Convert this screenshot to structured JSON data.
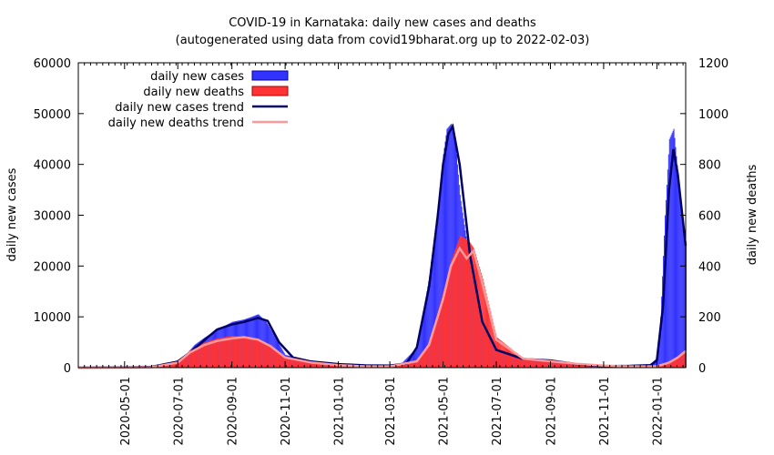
{
  "chart_data": {
    "type": "bar",
    "title": "COVID-19 in Karnataka: daily new cases and deaths",
    "subtitle": "(autogenerated using data from covid19bharat.org up to 2022-02-03)",
    "ylabel": "daily new cases",
    "y2label": "daily new deaths",
    "ylim": [
      0,
      60000
    ],
    "y2lim": [
      0,
      1200
    ],
    "yticks": [
      "0",
      "10000",
      "20000",
      "30000",
      "40000",
      "50000",
      "60000"
    ],
    "y2ticks": [
      "0",
      "200",
      "400",
      "600",
      "800",
      "1000",
      "1200"
    ],
    "xlim": [
      "2020-03-09",
      "2022-02-03"
    ],
    "xticks": [
      "2020-05-01",
      "2020-07-01",
      "2020-09-01",
      "2020-11-01",
      "2021-01-01",
      "2021-03-01",
      "2021-05-01",
      "2021-07-01",
      "2021-09-01",
      "2021-11-01",
      "2022-01-01"
    ],
    "grid": false,
    "legend_position": "top-left",
    "colors": {
      "cases": "#3333ff",
      "deaths": "#ff3333",
      "cases_trend": "#000066",
      "deaths_trend": "#ff9999"
    },
    "series": [
      {
        "name": "daily new cases",
        "axis": "left",
        "style": "bars",
        "x": [
          "2020-03-09",
          "2020-04-01",
          "2020-05-01",
          "2020-06-01",
          "2020-06-15",
          "2020-07-01",
          "2020-07-10",
          "2020-07-20",
          "2020-08-01",
          "2020-08-15",
          "2020-09-01",
          "2020-09-15",
          "2020-10-01",
          "2020-10-10",
          "2020-10-20",
          "2020-11-01",
          "2020-12-01",
          "2021-01-01",
          "2021-02-01",
          "2021-03-01",
          "2021-03-15",
          "2021-04-01",
          "2021-04-15",
          "2021-04-25",
          "2021-05-01",
          "2021-05-05",
          "2021-05-10",
          "2021-05-15",
          "2021-05-20",
          "2021-06-01",
          "2021-06-15",
          "2021-07-01",
          "2021-08-01",
          "2021-09-01",
          "2021-10-01",
          "2021-11-01",
          "2021-12-01",
          "2021-12-20",
          "2022-01-01",
          "2022-01-05",
          "2022-01-10",
          "2022-01-15",
          "2022-01-20",
          "2022-01-25",
          "2022-02-03"
        ],
        "values": [
          0,
          0,
          50,
          200,
          400,
          1500,
          2500,
          4500,
          6000,
          7500,
          9000,
          9500,
          10500,
          9000,
          6000,
          2500,
          1300,
          700,
          500,
          500,
          1000,
          4000,
          18000,
          32000,
          42000,
          47000,
          48000,
          44000,
          34000,
          20000,
          8000,
          3500,
          1700,
          1300,
          700,
          300,
          350,
          350,
          1500,
          10000,
          30000,
          45000,
          47000,
          38000,
          24000
        ]
      },
      {
        "name": "daily new deaths",
        "axis": "right",
        "style": "bars",
        "x": [
          "2020-03-09",
          "2020-05-01",
          "2020-06-01",
          "2020-07-01",
          "2020-07-15",
          "2020-08-01",
          "2020-08-15",
          "2020-09-01",
          "2020-09-15",
          "2020-10-01",
          "2020-10-15",
          "2020-11-01",
          "2020-12-01",
          "2021-01-01",
          "2021-02-01",
          "2021-03-01",
          "2021-04-01",
          "2021-04-15",
          "2021-05-01",
          "2021-05-10",
          "2021-05-20",
          "2021-05-30",
          "2021-06-05",
          "2021-06-15",
          "2021-07-01",
          "2021-08-01",
          "2021-09-01",
          "2021-10-01",
          "2021-11-01",
          "2021-12-01",
          "2022-01-01",
          "2022-01-15",
          "2022-01-25",
          "2022-02-03"
        ],
        "values": [
          0,
          0,
          2,
          20,
          70,
          100,
          115,
          125,
          120,
          110,
          90,
          40,
          20,
          10,
          5,
          5,
          25,
          100,
          300,
          420,
          520,
          500,
          470,
          350,
          120,
          35,
          25,
          15,
          8,
          5,
          5,
          20,
          45,
          70
        ]
      },
      {
        "name": "daily new cases trend",
        "axis": "left",
        "style": "line",
        "x": [
          "2020-03-09",
          "2020-05-01",
          "2020-06-01",
          "2020-07-01",
          "2020-07-15",
          "2020-08-01",
          "2020-08-15",
          "2020-09-01",
          "2020-09-15",
          "2020-10-01",
          "2020-10-12",
          "2020-10-25",
          "2020-11-10",
          "2020-12-01",
          "2021-01-01",
          "2021-02-01",
          "2021-03-01",
          "2021-03-20",
          "2021-04-01",
          "2021-04-15",
          "2021-04-25",
          "2021-05-01",
          "2021-05-07",
          "2021-05-12",
          "2021-05-20",
          "2021-06-01",
          "2021-06-15",
          "2021-07-01",
          "2021-08-01",
          "2021-09-01",
          "2021-10-01",
          "2021-11-01",
          "2021-12-01",
          "2021-12-25",
          "2022-01-01",
          "2022-01-08",
          "2022-01-15",
          "2022-01-20",
          "2022-01-25",
          "2022-02-03"
        ],
        "values": [
          0,
          50,
          150,
          1200,
          3000,
          5500,
          7500,
          8500,
          9000,
          9800,
          9200,
          5000,
          2000,
          1200,
          700,
          450,
          400,
          800,
          4000,
          16000,
          30000,
          40000,
          46000,
          47500,
          40000,
          22000,
          9000,
          3500,
          1700,
          1400,
          700,
          300,
          350,
          500,
          1500,
          12000,
          35000,
          43000,
          38000,
          24000
        ]
      },
      {
        "name": "daily new deaths trend",
        "axis": "right",
        "style": "line",
        "x": [
          "2020-03-09",
          "2020-05-01",
          "2020-06-01",
          "2020-07-01",
          "2020-07-15",
          "2020-08-01",
          "2020-08-15",
          "2020-09-01",
          "2020-09-15",
          "2020-10-01",
          "2020-10-15",
          "2020-11-01",
          "2020-12-01",
          "2021-01-01",
          "2021-02-01",
          "2021-03-01",
          "2021-04-01",
          "2021-04-15",
          "2021-05-01",
          "2021-05-10",
          "2021-05-20",
          "2021-05-28",
          "2021-06-05",
          "2021-06-15",
          "2021-07-01",
          "2021-08-01",
          "2021-09-01",
          "2021-10-01",
          "2021-11-01",
          "2021-12-01",
          "2022-01-01",
          "2022-01-15",
          "2022-01-25",
          "2022-02-03"
        ],
        "values": [
          0,
          0,
          2,
          20,
          60,
          90,
          105,
          115,
          120,
          110,
          85,
          40,
          20,
          10,
          5,
          5,
          25,
          90,
          270,
          400,
          470,
          430,
          460,
          330,
          110,
          35,
          25,
          15,
          8,
          5,
          5,
          20,
          40,
          65
        ]
      }
    ]
  }
}
